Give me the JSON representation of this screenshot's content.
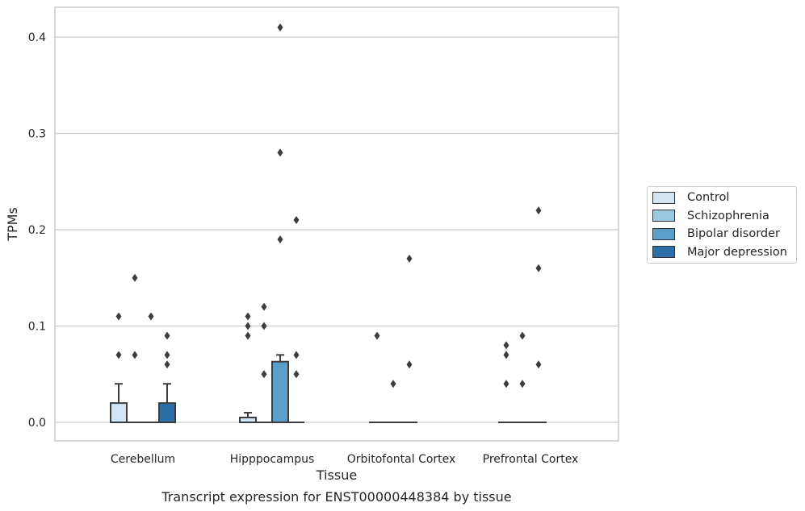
{
  "caption": "Transcript expression for ENST00000448384 by tissue",
  "chart_data": {
    "type": "box",
    "title": "",
    "xlabel": "Tissue",
    "ylabel": "TPMs",
    "ylim": [
      -0.02,
      0.43
    ],
    "yticks": [
      0.0,
      0.1,
      0.2,
      0.3,
      0.4
    ],
    "ytick_labels": [
      "0.0",
      "0.1",
      "0.2",
      "0.3",
      "0.4"
    ],
    "grid": "horizontal",
    "legend_position": "right",
    "categories": [
      "Cerebellum",
      "Hipppocampus",
      "Orbitofontal Cortex",
      "Prefrontal Cortex"
    ],
    "series": [
      {
        "name": "Control",
        "color": "#d3e4f3",
        "boxes": [
          {
            "q1": 0.0,
            "median": 0.0,
            "q3": 0.02,
            "whisker_low": 0.0,
            "whisker_high": 0.04,
            "outliers": [
              0.11,
              0.07
            ]
          },
          {
            "q1": 0.0,
            "median": 0.0,
            "q3": 0.005,
            "whisker_low": 0.0,
            "whisker_high": 0.01,
            "outliers": [
              0.11,
              0.1,
              0.09
            ]
          },
          {
            "q1": 0.0,
            "median": 0.0,
            "q3": 0.0,
            "whisker_low": 0.0,
            "whisker_high": 0.0,
            "outliers": [
              0.09
            ]
          },
          {
            "q1": 0.0,
            "median": 0.0,
            "q3": 0.0,
            "whisker_low": 0.0,
            "whisker_high": 0.0,
            "outliers": [
              0.08,
              0.07,
              0.04
            ]
          }
        ]
      },
      {
        "name": "Schizophrenia",
        "color": "#9ac8e0",
        "boxes": [
          {
            "q1": 0.0,
            "median": 0.0,
            "q3": 0.0,
            "whisker_low": 0.0,
            "whisker_high": 0.0,
            "outliers": [
              0.15,
              0.07
            ]
          },
          {
            "q1": 0.0,
            "median": 0.0,
            "q3": 0.0,
            "whisker_low": 0.0,
            "whisker_high": 0.0,
            "outliers": [
              0.12,
              0.1,
              0.05
            ]
          },
          {
            "q1": 0.0,
            "median": 0.0,
            "q3": 0.0,
            "whisker_low": 0.0,
            "whisker_high": 0.0,
            "outliers": [
              0.04
            ]
          },
          {
            "q1": 0.0,
            "median": 0.0,
            "q3": 0.0,
            "whisker_low": 0.0,
            "whisker_high": 0.0,
            "outliers": [
              0.09,
              0.04
            ]
          }
        ]
      },
      {
        "name": "Bipolar disorder",
        "color": "#5a9ec9",
        "boxes": [
          {
            "q1": 0.0,
            "median": 0.0,
            "q3": 0.0,
            "whisker_low": 0.0,
            "whisker_high": 0.0,
            "outliers": [
              0.11
            ]
          },
          {
            "q1": 0.0,
            "median": 0.0,
            "q3": 0.063,
            "whisker_low": 0.0,
            "whisker_high": 0.07,
            "outliers": [
              0.41,
              0.28,
              0.19
            ]
          },
          {
            "q1": 0.0,
            "median": 0.0,
            "q3": 0.0,
            "whisker_low": 0.0,
            "whisker_high": 0.0,
            "outliers": [
              0.17,
              0.06
            ]
          },
          {
            "q1": 0.0,
            "median": 0.0,
            "q3": 0.0,
            "whisker_low": 0.0,
            "whisker_high": 0.0,
            "outliers": [
              0.22,
              0.16,
              0.06
            ]
          }
        ]
      },
      {
        "name": "Major depression",
        "color": "#2d6ea8",
        "boxes": [
          {
            "q1": 0.0,
            "median": 0.0,
            "q3": 0.02,
            "whisker_low": 0.0,
            "whisker_high": 0.04,
            "outliers": [
              0.09,
              0.07,
              0.06
            ]
          },
          {
            "q1": 0.0,
            "median": 0.0,
            "q3": 0.0,
            "whisker_low": 0.0,
            "whisker_high": 0.0,
            "outliers": [
              0.21,
              0.07,
              0.05
            ]
          },
          null,
          null
        ]
      }
    ]
  }
}
